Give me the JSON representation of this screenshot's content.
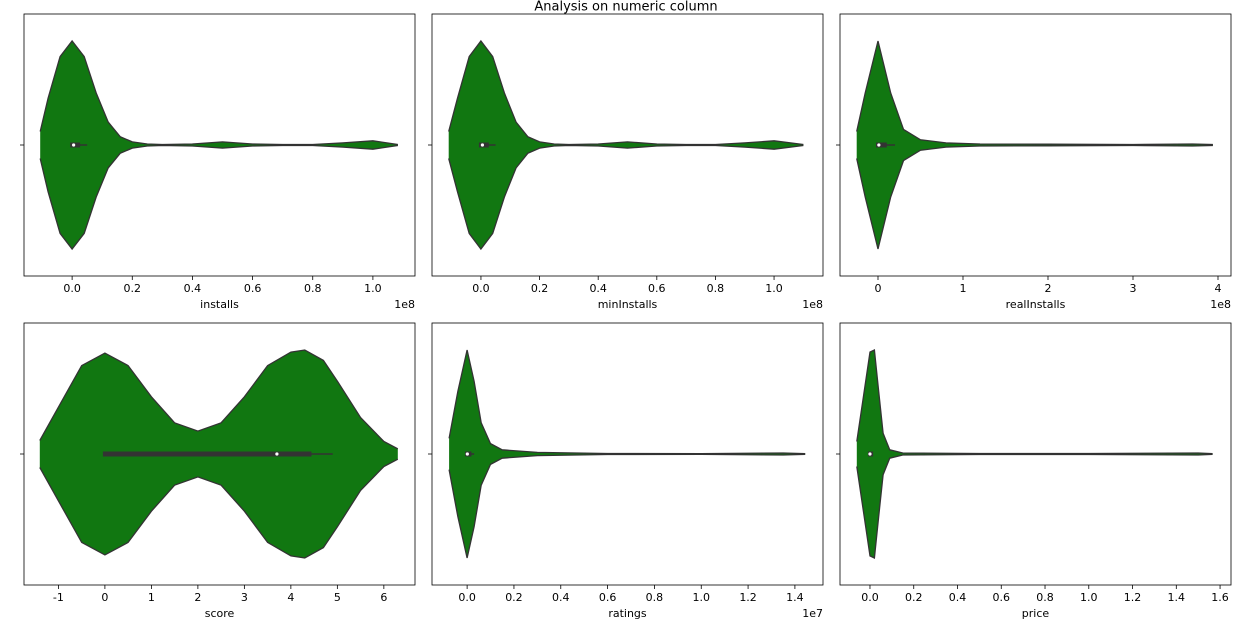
{
  "title": "Analysis on numeric column",
  "chart_data": [
    {
      "type": "violin",
      "xlabel": "installs",
      "offset_label": "1e8",
      "color": "#117711",
      "xlim": [
        -0.16,
        1.14
      ],
      "xticks": [
        {
          "value": 0,
          "label": "0.0"
        },
        0.2,
        0.4,
        0.6,
        0.8,
        {
          "value": 1,
          "label": "1.0"
        }
      ],
      "x": [
        -0.106,
        -0.08,
        -0.04,
        0,
        0.04,
        0.08,
        0.12,
        0.16,
        0.2,
        0.25,
        0.3,
        0.4,
        0.5,
        0.6,
        0.7,
        0.8,
        0.9,
        1.0,
        1.083
      ],
      "density": [
        0.13,
        0.45,
        0.85,
        1,
        0.85,
        0.5,
        0.22,
        0.08,
        0.03,
        0.01,
        0.005,
        0.01,
        0.03,
        0.01,
        0.005,
        0.005,
        0.02,
        0.04,
        0.005
      ],
      "box": {
        "whislo": 0,
        "q1": 0,
        "med": 0.005,
        "q3": 0.02,
        "whishi": 0.05
      }
    },
    {
      "type": "violin",
      "xlabel": "minInstalls",
      "offset_label": "1e8",
      "color": "#117711",
      "xlim": [
        -0.167,
        1.167
      ],
      "xticks": [
        {
          "value": 0,
          "label": "0.0"
        },
        0.2,
        0.4,
        0.6,
        0.8,
        {
          "value": 1,
          "label": "1.0"
        }
      ],
      "x": [
        -0.11,
        -0.08,
        -0.04,
        0,
        0.04,
        0.08,
        0.12,
        0.16,
        0.2,
        0.25,
        0.3,
        0.4,
        0.5,
        0.6,
        0.7,
        0.8,
        0.9,
        1.0,
        1.1
      ],
      "density": [
        0.13,
        0.45,
        0.85,
        1,
        0.85,
        0.5,
        0.22,
        0.08,
        0.03,
        0.01,
        0.005,
        0.01,
        0.03,
        0.01,
        0.005,
        0.005,
        0.02,
        0.04,
        0.005
      ],
      "box": {
        "whislo": 0,
        "q1": 0,
        "med": 0.005,
        "q3": 0.02,
        "whishi": 0.05
      }
    },
    {
      "type": "violin",
      "xlabel": "realInstalls",
      "offset_label": "1e8",
      "color": "#117711",
      "xlim": [
        -0.447,
        4.153
      ],
      "xticks": [
        0,
        1,
        2,
        3,
        4
      ],
      "x": [
        -0.25,
        -0.15,
        0,
        0.15,
        0.3,
        0.5,
        0.8,
        1.2,
        2,
        3,
        3.7,
        3.94
      ],
      "density": [
        0.13,
        0.5,
        1,
        0.5,
        0.15,
        0.05,
        0.02,
        0.01,
        0.008,
        0.005,
        0.01,
        0.005
      ],
      "box": {
        "whislo": 0,
        "q1": 0,
        "med": 0.01,
        "q3": 0.08,
        "whishi": 0.2
      }
    },
    {
      "type": "violin",
      "xlabel": "score",
      "color": "#117711",
      "xlim": [
        -1.74,
        6.67
      ],
      "xticks": [
        -1,
        0,
        1,
        2,
        3,
        4,
        5,
        6
      ],
      "x": [
        -1.4,
        -1,
        -0.5,
        0,
        0.5,
        1,
        1.5,
        2,
        2.5,
        3,
        3.5,
        4,
        4.3,
        4.7,
        5,
        5.5,
        6,
        6.3
      ],
      "density": [
        0.13,
        0.45,
        0.85,
        0.97,
        0.85,
        0.55,
        0.3,
        0.22,
        0.3,
        0.55,
        0.85,
        0.98,
        1,
        0.9,
        0.7,
        0.35,
        0.12,
        0.05
      ],
      "box": {
        "whislo": 0,
        "q1": 0,
        "med": 3.7,
        "q3": 4.4,
        "whishi": 4.9
      }
    },
    {
      "type": "violin",
      "xlabel": "ratings",
      "offset_label": "1e7",
      "color": "#117711",
      "xlim": [
        -0.15,
        1.52
      ],
      "xticks": [
        {
          "value": 0,
          "label": "0.0"
        },
        0.2,
        0.4,
        0.6,
        0.8,
        {
          "value": 1,
          "label": "1.0"
        },
        1.2,
        1.4
      ],
      "x": [
        -0.077,
        -0.04,
        0,
        0.03,
        0.06,
        0.1,
        0.15,
        0.3,
        0.6,
        1.0,
        1.35,
        1.444
      ],
      "density": [
        0.15,
        0.6,
        1,
        0.7,
        0.3,
        0.1,
        0.04,
        0.015,
        0.005,
        0.004,
        0.01,
        0.004
      ],
      "box": {
        "whislo": 0,
        "q1": 0,
        "med": 0.001,
        "q3": 0.01,
        "whishi": 0.03
      }
    },
    {
      "type": "violin",
      "xlabel": "price",
      "color": "#117711",
      "xlim": [
        -0.137,
        1.65
      ],
      "xticks": [
        {
          "value": 0,
          "label": "0.0"
        },
        0.2,
        0.4,
        0.6,
        0.8,
        {
          "value": 1,
          "label": "1.0"
        },
        1.2,
        1.4,
        1.6
      ],
      "x": [
        -0.06,
        -0.03,
        0,
        0.02,
        0.04,
        0.06,
        0.09,
        0.15,
        0.5,
        1.0,
        1.5,
        1.566
      ],
      "density": [
        0.12,
        0.55,
        0.98,
        1,
        0.6,
        0.2,
        0.04,
        0.01,
        0.005,
        0.005,
        0.01,
        0.004
      ],
      "box": {
        "whislo": 0,
        "q1": 0,
        "med": 0,
        "q3": 0.005,
        "whishi": 0.01
      }
    }
  ]
}
